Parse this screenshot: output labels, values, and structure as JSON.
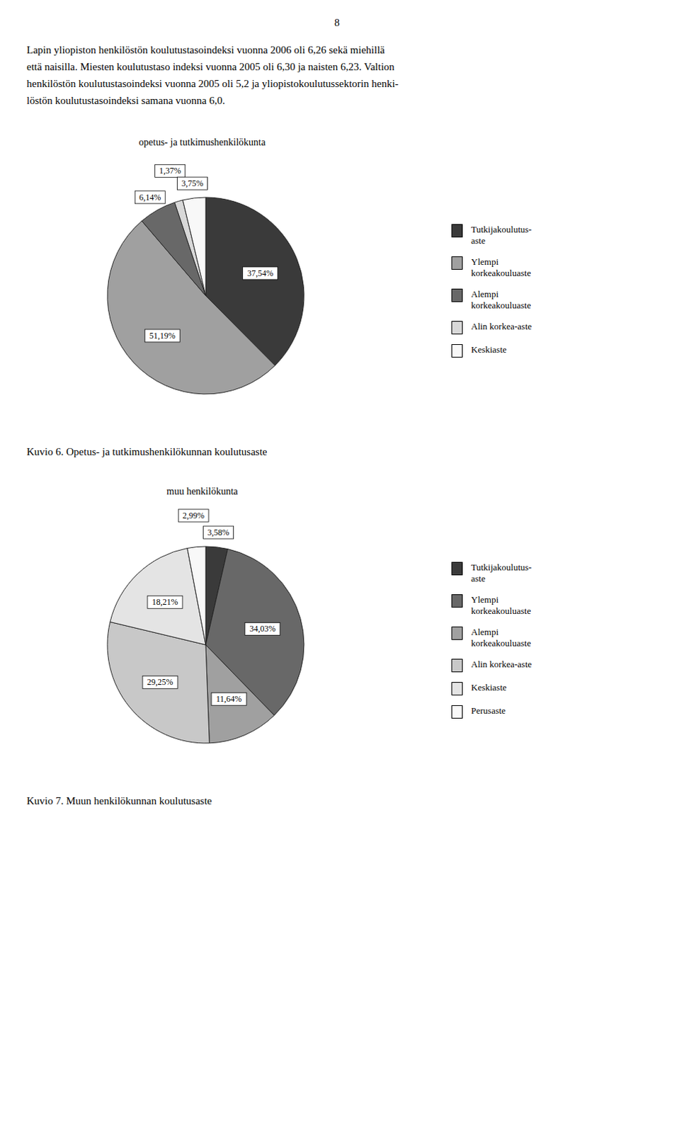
{
  "chart_data": [
    {
      "type": "pie",
      "title": "opetus- ja tutkimushenkilökunta",
      "categories": [
        "Tutkijakoulutus-\naste",
        "Ylempi\nkorkeakouluaste",
        "Alempi\nkorkeakouluaste",
        "Alin korkea-aste",
        "Keskiaste"
      ],
      "values": [
        37.54,
        51.19,
        6.14,
        1.37,
        3.75
      ],
      "value_labels": [
        "37,54%",
        "51,19%",
        "6,14%",
        "1,37%",
        "3,75%"
      ],
      "colors": [
        "#3a3a3a",
        "#a0a0a0",
        "#686868",
        "#d8d8d8",
        "#f8f8f8"
      ],
      "data_labels": true,
      "legend": "right",
      "annotations": [
        "8",
        "Lapin yliopiston henkilöstön koulutustasoindeksi vuonna 2006 oli 6,26 sekä miehillä",
        "että naisilla. Miesten koulutustaso indeksi vuonna 2005 oli 6,30 ja naisten 6,23. Valtion",
        "henkilöstön koulutustasoindeksi vuonna 2005 oli 5,2 ja yliopistokoulutussektorin henki-",
        "löstön koulutustasoindeksi samana vuonna 6,0.",
        "Kuvio 6. Opetus- ja tutkimushenkilökunnan koulutusaste"
      ]
    },
    {
      "type": "pie",
      "title": "muu henkilökunta",
      "categories": [
        "Tutkijakoulutus-\naste",
        "Ylempi\nkorkeakouluaste",
        "Alempi\nkorkeakouluaste",
        "Alin korkea-aste",
        "Keskiaste",
        "Perusaste"
      ],
      "values": [
        3.58,
        34.03,
        11.64,
        29.25,
        18.21,
        2.99
      ],
      "value_labels": [
        "3,58%",
        "34,03%",
        "11,64%",
        "29,25%",
        "18,21%",
        "2,99%"
      ],
      "colors": [
        "#3a3a3a",
        "#686868",
        "#a0a0a0",
        "#c8c8c8",
        "#e4e4e4",
        "#f8f8f8"
      ],
      "data_labels": true,
      "legend": "right",
      "annotations": [
        "Kuvio 7. Muun henkilökunnan koulutusaste"
      ]
    }
  ]
}
